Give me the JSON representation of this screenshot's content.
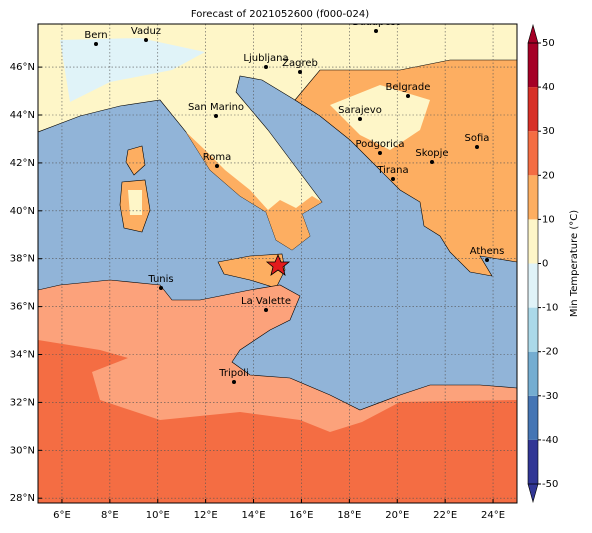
{
  "title": "Forecast of 2021052600 (f000-024)",
  "map": {
    "xlim": [
      5,
      25
    ],
    "ylim": [
      27.8,
      47.8
    ],
    "xticks": [
      {
        "value": 6,
        "label": "6°E"
      },
      {
        "value": 8,
        "label": "8°E"
      },
      {
        "value": 10,
        "label": "10°E"
      },
      {
        "value": 12,
        "label": "12°E"
      },
      {
        "value": 14,
        "label": "14°E"
      },
      {
        "value": 16,
        "label": "16°E"
      },
      {
        "value": 18,
        "label": "18°E"
      },
      {
        "value": 20,
        "label": "20°E"
      },
      {
        "value": 22,
        "label": "22°E"
      },
      {
        "value": 24,
        "label": "24°E"
      }
    ],
    "yticks": [
      {
        "value": 28,
        "label": "28°N"
      },
      {
        "value": 30,
        "label": "30°N"
      },
      {
        "value": 32,
        "label": "32°N"
      },
      {
        "value": 34,
        "label": "34°N"
      },
      {
        "value": 36,
        "label": "36°N"
      },
      {
        "value": 38,
        "label": "38°N"
      },
      {
        "value": 40,
        "label": "40°N"
      },
      {
        "value": 42,
        "label": "42°N"
      },
      {
        "value": 44,
        "label": "44°N"
      },
      {
        "value": 46,
        "label": "46°N"
      }
    ],
    "grid": true,
    "cities": [
      "Bern",
      "Vaduz",
      "Budapest",
      "Ljubljana",
      "Zagreb",
      "Belgrade",
      "Sarajevo",
      "San Marino",
      "Podgorica",
      "Sofia",
      "Skopje",
      "Roma",
      "Tirana",
      "Athens",
      "Tunis",
      "La Valette",
      "Tripoli"
    ]
  },
  "colorbar": {
    "label": "Min Temperature (°C)",
    "lim": [
      -50,
      50
    ],
    "ticks": [
      -50,
      -40,
      -30,
      -20,
      -10,
      0,
      10,
      20,
      30,
      40,
      50
    ],
    "colors": [
      "#313695",
      "#4575b4",
      "#74add1",
      "#abd9e9",
      "#e0f3f8",
      "#fef6c8",
      "#fdae61",
      "#f46d43",
      "#d73027",
      "#a50026"
    ]
  }
}
